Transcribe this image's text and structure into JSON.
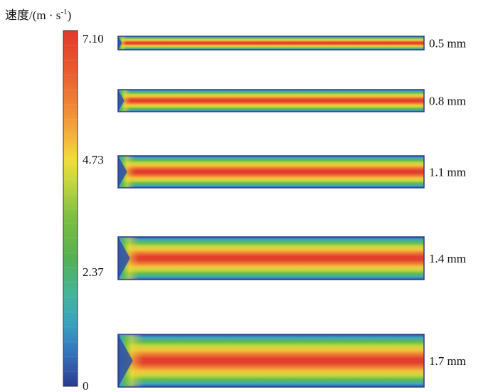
{
  "legend": {
    "title": "速度/(m · s",
    "title_sup": "-1",
    "title_close": ")",
    "ticks": [
      "7.10",
      "4.73",
      "2.37",
      "0"
    ],
    "colors": [
      "#2b3a8f",
      "#2f56a8",
      "#3a7dc0",
      "#3fa6b4",
      "#4cb58f",
      "#58b45e",
      "#6fbf45",
      "#a2cc3e",
      "#d8df3c",
      "#f2dc3a",
      "#f3b43b",
      "#ef8a37",
      "#e95c31",
      "#e0392b"
    ]
  },
  "channels": [
    {
      "label": "0.5 mm",
      "width_mm": 0.5
    },
    {
      "label": "0.8 mm",
      "width_mm": 0.8
    },
    {
      "label": "1.1 mm",
      "width_mm": 1.1
    },
    {
      "label": "1.4 mm",
      "width_mm": 1.4
    },
    {
      "label": "1.7 mm",
      "width_mm": 1.7
    }
  ]
}
